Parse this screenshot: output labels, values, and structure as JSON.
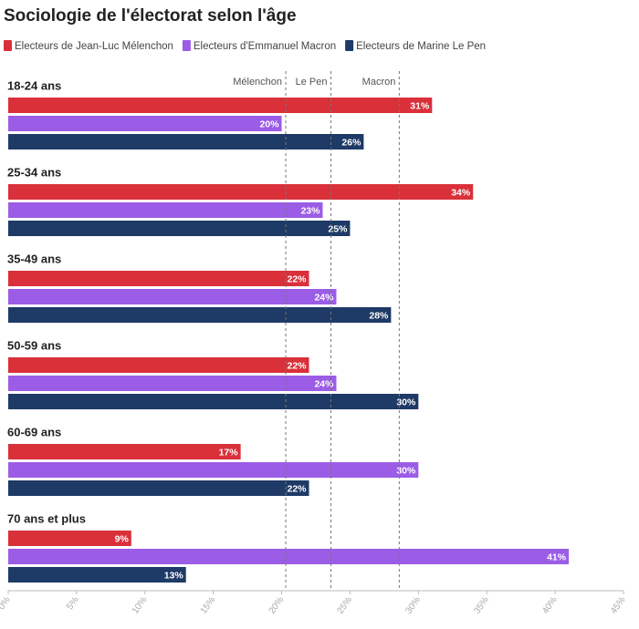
{
  "chart_data": {
    "type": "hbar",
    "title": "Sociologie de l'électorat selon l'âge",
    "categories": [
      "18-24 ans",
      "25-34 ans",
      "35-49 ans",
      "50-59 ans",
      "60-69 ans",
      "70 ans et plus"
    ],
    "series": [
      {
        "name": "Electeurs de Jean-Luc Mélenchon",
        "color": "#d9303a",
        "values": [
          31,
          34,
          22,
          22,
          17,
          9
        ],
        "value_labels": [
          "31%",
          "34%",
          "22%",
          "22%",
          "17%",
          "9%"
        ]
      },
      {
        "name": "Electeurs d'Emmanuel Macron",
        "color": "#9b5ce6",
        "values": [
          20,
          23,
          24,
          24,
          30,
          41
        ],
        "value_labels": [
          "20%",
          "23%",
          "24%",
          "24%",
          "30%",
          "41%"
        ]
      },
      {
        "name": "Electeurs de Marine Le Pen",
        "color": "#1e3a66",
        "values": [
          26,
          25,
          28,
          30,
          22,
          13
        ],
        "value_labels": [
          "26%",
          "25%",
          "28%",
          "30%",
          "22%",
          "13%"
        ]
      }
    ],
    "reference_lines": [
      {
        "label": "Mélenchon",
        "value": 20.3
      },
      {
        "label": "Le Pen",
        "value": 23.6
      },
      {
        "label": "Macron",
        "value": 28.6
      }
    ],
    "xlim": [
      0,
      45
    ],
    "xticks": [
      {
        "value": 0,
        "label": "0%"
      },
      {
        "value": 5,
        "label": "5%"
      },
      {
        "value": 10,
        "label": "10%"
      },
      {
        "value": 15,
        "label": "15%"
      },
      {
        "value": 20,
        "label": "20%"
      },
      {
        "value": 25,
        "label": "25%"
      },
      {
        "value": 30,
        "label": "30%"
      },
      {
        "value": 35,
        "label": "35%"
      },
      {
        "value": 40,
        "label": "40%"
      },
      {
        "value": 45,
        "label": "45%"
      }
    ]
  }
}
